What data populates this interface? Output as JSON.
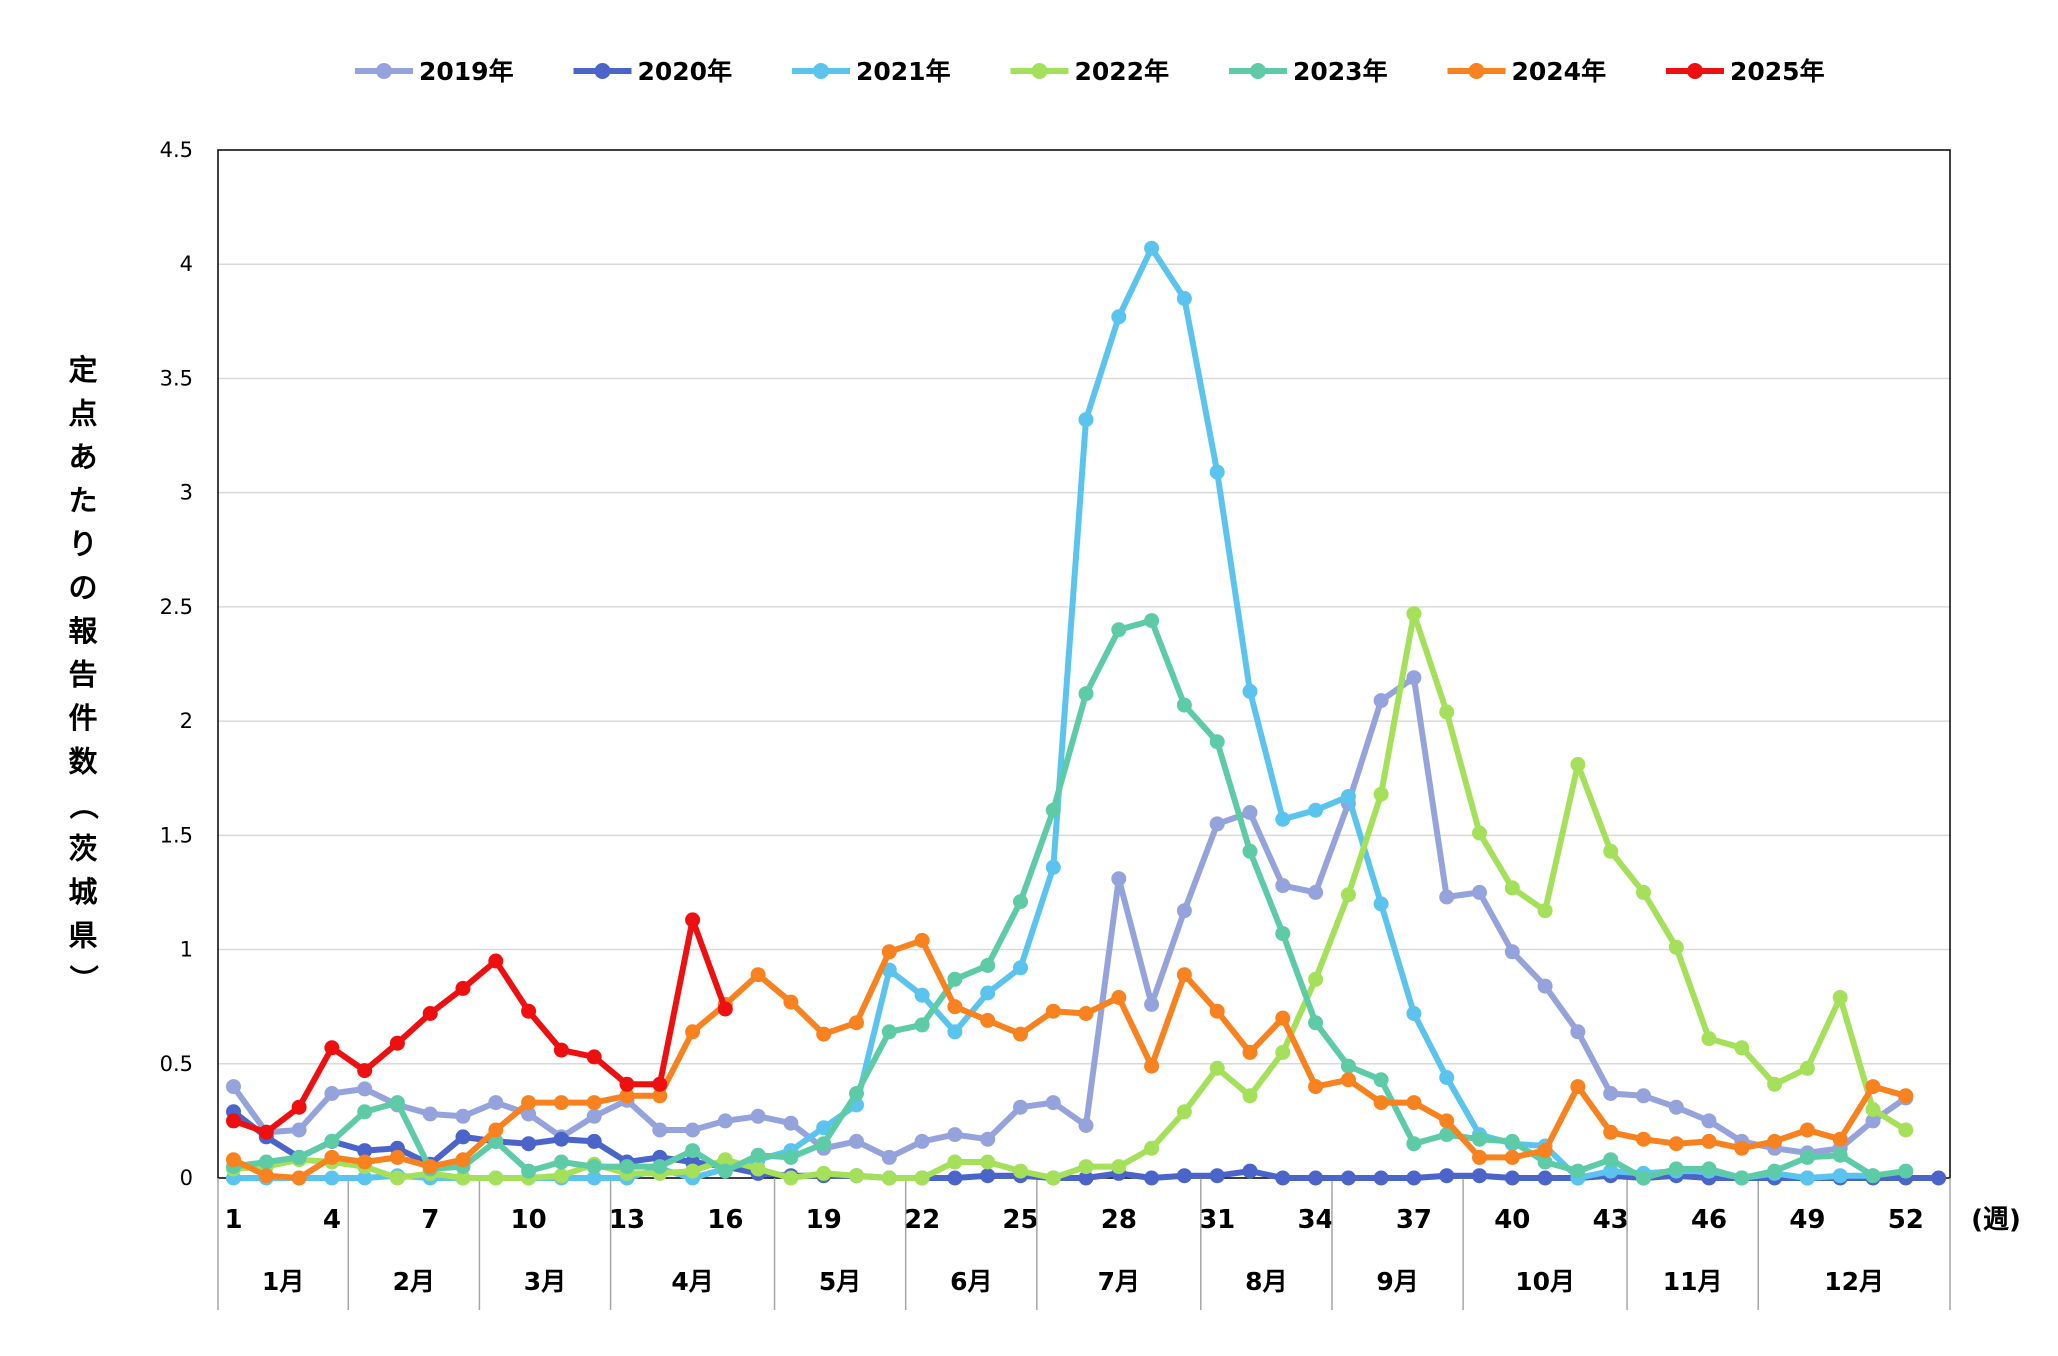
{
  "chart_data": {
    "type": "line",
    "ylabel": "定点あたりの報告件数（茨城県）",
    "x_unit": "(週)",
    "ylim": [
      0,
      4.5
    ],
    "y_ticks": [
      "0",
      "0.5",
      "1",
      "1.5",
      "2",
      "2.5",
      "3",
      "3.5",
      "4",
      "4.5"
    ],
    "x_ticks": [
      1,
      4,
      7,
      10,
      13,
      16,
      19,
      22,
      25,
      28,
      31,
      34,
      37,
      40,
      43,
      46,
      49,
      52
    ],
    "x_range": [
      1,
      53
    ],
    "grid": "horizontal",
    "legend_position": "top",
    "months": [
      {
        "label": "1月",
        "start": 1,
        "end": 5
      },
      {
        "label": "2月",
        "start": 5,
        "end": 9
      },
      {
        "label": "3月",
        "start": 9,
        "end": 13
      },
      {
        "label": "4月",
        "start": 13,
        "end": 18
      },
      {
        "label": "5月",
        "start": 18,
        "end": 22
      },
      {
        "label": "6月",
        "start": 22,
        "end": 26
      },
      {
        "label": "7月",
        "start": 26,
        "end": 31
      },
      {
        "label": "8月",
        "start": 31,
        "end": 35
      },
      {
        "label": "9月",
        "start": 35,
        "end": 39
      },
      {
        "label": "10月",
        "start": 39,
        "end": 44
      },
      {
        "label": "11月",
        "start": 44,
        "end": 48
      },
      {
        "label": "12月",
        "start": 48,
        "end": 53
      }
    ],
    "series": [
      {
        "name": "2019年",
        "color": "#95a3dc",
        "x_start": 1,
        "values": [
          0.4,
          0.2,
          0.21,
          0.37,
          0.39,
          0.32,
          0.28,
          0.27,
          0.33,
          0.28,
          0.18,
          0.27,
          0.34,
          0.21,
          0.21,
          0.25,
          0.27,
          0.24,
          0.13,
          0.16,
          0.09,
          0.16,
          0.19,
          0.17,
          0.31,
          0.33,
          0.23,
          1.31,
          0.76,
          1.17,
          1.55,
          1.6,
          1.28,
          1.25,
          1.64,
          2.09,
          2.19,
          1.23,
          1.25,
          0.99,
          0.84,
          0.64,
          0.37,
          0.36,
          0.31,
          0.25,
          0.16,
          0.13,
          0.11,
          0.13,
          0.25,
          0.35
        ]
      },
      {
        "name": "2020年",
        "color": "#4a64c9",
        "x_start": 1,
        "values": [
          0.29,
          0.18,
          0.09,
          0.16,
          0.12,
          0.13,
          0.06,
          0.18,
          0.16,
          0.15,
          0.17,
          0.16,
          0.07,
          0.09,
          0.07,
          0.05,
          0.02,
          0.01,
          0.01,
          0.01,
          0.0,
          0.0,
          0.0,
          0.01,
          0.01,
          0.0,
          0.0,
          0.02,
          0.0,
          0.01,
          0.01,
          0.03,
          0.0,
          0.0,
          0.0,
          0.0,
          0.0,
          0.01,
          0.01,
          0.0,
          0.0,
          0.0,
          0.01,
          0.0,
          0.01,
          0.0,
          0.0,
          0.0,
          0.0,
          0.0,
          0.0,
          0.0,
          0.0
        ]
      },
      {
        "name": "2021年",
        "color": "#5bc4ee",
        "x_start": 1,
        "values": [
          0.0,
          0.0,
          0.0,
          0.0,
          0.0,
          0.01,
          0.0,
          0.0,
          0.0,
          0.0,
          0.0,
          0.0,
          0.0,
          0.04,
          0.0,
          0.04,
          0.08,
          0.12,
          0.22,
          0.32,
          0.91,
          0.8,
          0.64,
          0.81,
          0.92,
          1.36,
          3.32,
          3.77,
          4.07,
          3.85,
          3.09,
          2.13,
          1.57,
          1.61,
          1.67,
          1.2,
          0.72,
          0.44,
          0.19,
          0.15,
          0.14,
          0.0,
          0.03,
          0.02,
          0.03,
          0.03,
          0.0,
          0.02,
          0.0,
          0.01,
          0.01
        ]
      },
      {
        "name": "2022年",
        "color": "#a4e05a",
        "x_start": 1,
        "values": [
          0.04,
          0.05,
          0.08,
          0.07,
          0.05,
          0.0,
          0.02,
          0.0,
          0.0,
          0.0,
          0.01,
          0.06,
          0.02,
          0.02,
          0.03,
          0.08,
          0.04,
          0.0,
          0.02,
          0.01,
          0.0,
          0.0,
          0.07,
          0.07,
          0.03,
          0.0,
          0.05,
          0.05,
          0.13,
          0.29,
          0.48,
          0.36,
          0.55,
          0.87,
          1.24,
          1.68,
          2.47,
          2.04,
          1.51,
          1.27,
          1.17,
          1.81,
          1.43,
          1.25,
          1.01,
          0.61,
          0.57,
          0.41,
          0.48,
          0.79,
          0.3,
          0.21
        ]
      },
      {
        "name": "2023年",
        "color": "#5ecba7",
        "x_start": 1,
        "values": [
          0.05,
          0.07,
          0.09,
          0.16,
          0.29,
          0.33,
          0.04,
          0.05,
          0.16,
          0.03,
          0.07,
          0.05,
          0.05,
          0.05,
          0.12,
          0.03,
          0.1,
          0.09,
          0.15,
          0.37,
          0.64,
          0.67,
          0.87,
          0.93,
          1.21,
          1.61,
          2.12,
          2.4,
          2.44,
          2.07,
          1.91,
          1.43,
          1.07,
          0.68,
          0.49,
          0.43,
          0.15,
          0.19,
          0.17,
          0.16,
          0.07,
          0.03,
          0.08,
          0.0,
          0.04,
          0.04,
          0.0,
          0.03,
          0.09,
          0.1,
          0.01,
          0.03
        ]
      },
      {
        "name": "2024年",
        "color": "#f7821f",
        "x_start": 1,
        "values": [
          0.08,
          0.01,
          0.0,
          0.09,
          0.07,
          0.09,
          0.05,
          0.08,
          0.21,
          0.33,
          0.33,
          0.33,
          0.36,
          0.36,
          0.64,
          0.76,
          0.89,
          0.77,
          0.63,
          0.68,
          0.99,
          1.04,
          0.75,
          0.69,
          0.63,
          0.73,
          0.72,
          0.79,
          0.49,
          0.89,
          0.73,
          0.55,
          0.7,
          0.4,
          0.43,
          0.33,
          0.33,
          0.25,
          0.09,
          0.09,
          0.12,
          0.4,
          0.2,
          0.17,
          0.15,
          0.16,
          0.13,
          0.16,
          0.21,
          0.17,
          0.4,
          0.36
        ]
      },
      {
        "name": "2025年",
        "color": "#ee1010",
        "x_start": 1,
        "values": [
          0.25,
          0.2,
          0.31,
          0.57,
          0.47,
          0.59,
          0.72,
          0.83,
          0.95,
          0.73,
          0.56,
          0.53,
          0.41,
          0.41,
          1.13,
          0.74
        ]
      }
    ]
  }
}
